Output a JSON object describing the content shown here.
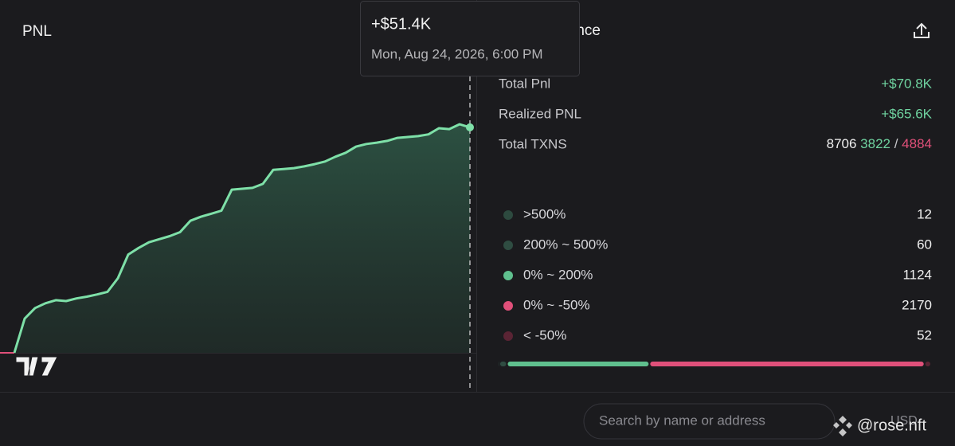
{
  "chart_data": {
    "type": "area",
    "title": "PNL",
    "color": "#7ee0a8",
    "values": [
      0,
      7.8,
      10.2,
      11.3,
      12.0,
      11.8,
      12.4,
      12.8,
      13.3,
      13.9,
      17.0,
      22.4,
      23.9,
      25.2,
      25.9,
      26.6,
      27.5,
      30.1,
      31.0,
      31.7,
      32.4,
      37.2,
      37.4,
      37.6,
      38.5,
      41.7,
      41.9,
      42.1,
      42.5,
      43.0,
      43.6,
      44.7,
      45.6,
      47.0,
      47.6,
      47.9,
      48.3,
      49.0,
      49.2,
      49.4,
      49.8,
      51.2,
      51.0,
      52.1,
      51.4
    ],
    "tooltip": {
      "label": "+$51.4K",
      "date": "Mon, Aug 24, 2026, 6:00 PM"
    }
  },
  "panel": {
    "title": "Performance",
    "stats": [
      {
        "label": "Total Pnl",
        "value": "+$70.8K"
      },
      {
        "label": "Realized PNL",
        "value": "+$65.6K"
      }
    ],
    "txns": {
      "label": "Total TXNS",
      "total": 8706,
      "buys": 3822,
      "separator": "/",
      "sells": 4884
    },
    "distribution": [
      {
        "label": ">500%",
        "count": 12,
        "color": "#2d4a3f"
      },
      {
        "label": "200% ~ 500%",
        "count": 60,
        "color": "#2f4d42"
      },
      {
        "label": "0% ~ 200%",
        "count": 1124,
        "color": "#5fc08e"
      },
      {
        "label": "0% ~ -50%",
        "count": 2170,
        "color": "#e0507a"
      },
      {
        "label": "< -50%",
        "count": 52,
        "color": "#5a2434"
      }
    ]
  },
  "search": {
    "placeholder": "Search by name or address"
  },
  "currency": "USD",
  "watermark": "@rose.nft"
}
